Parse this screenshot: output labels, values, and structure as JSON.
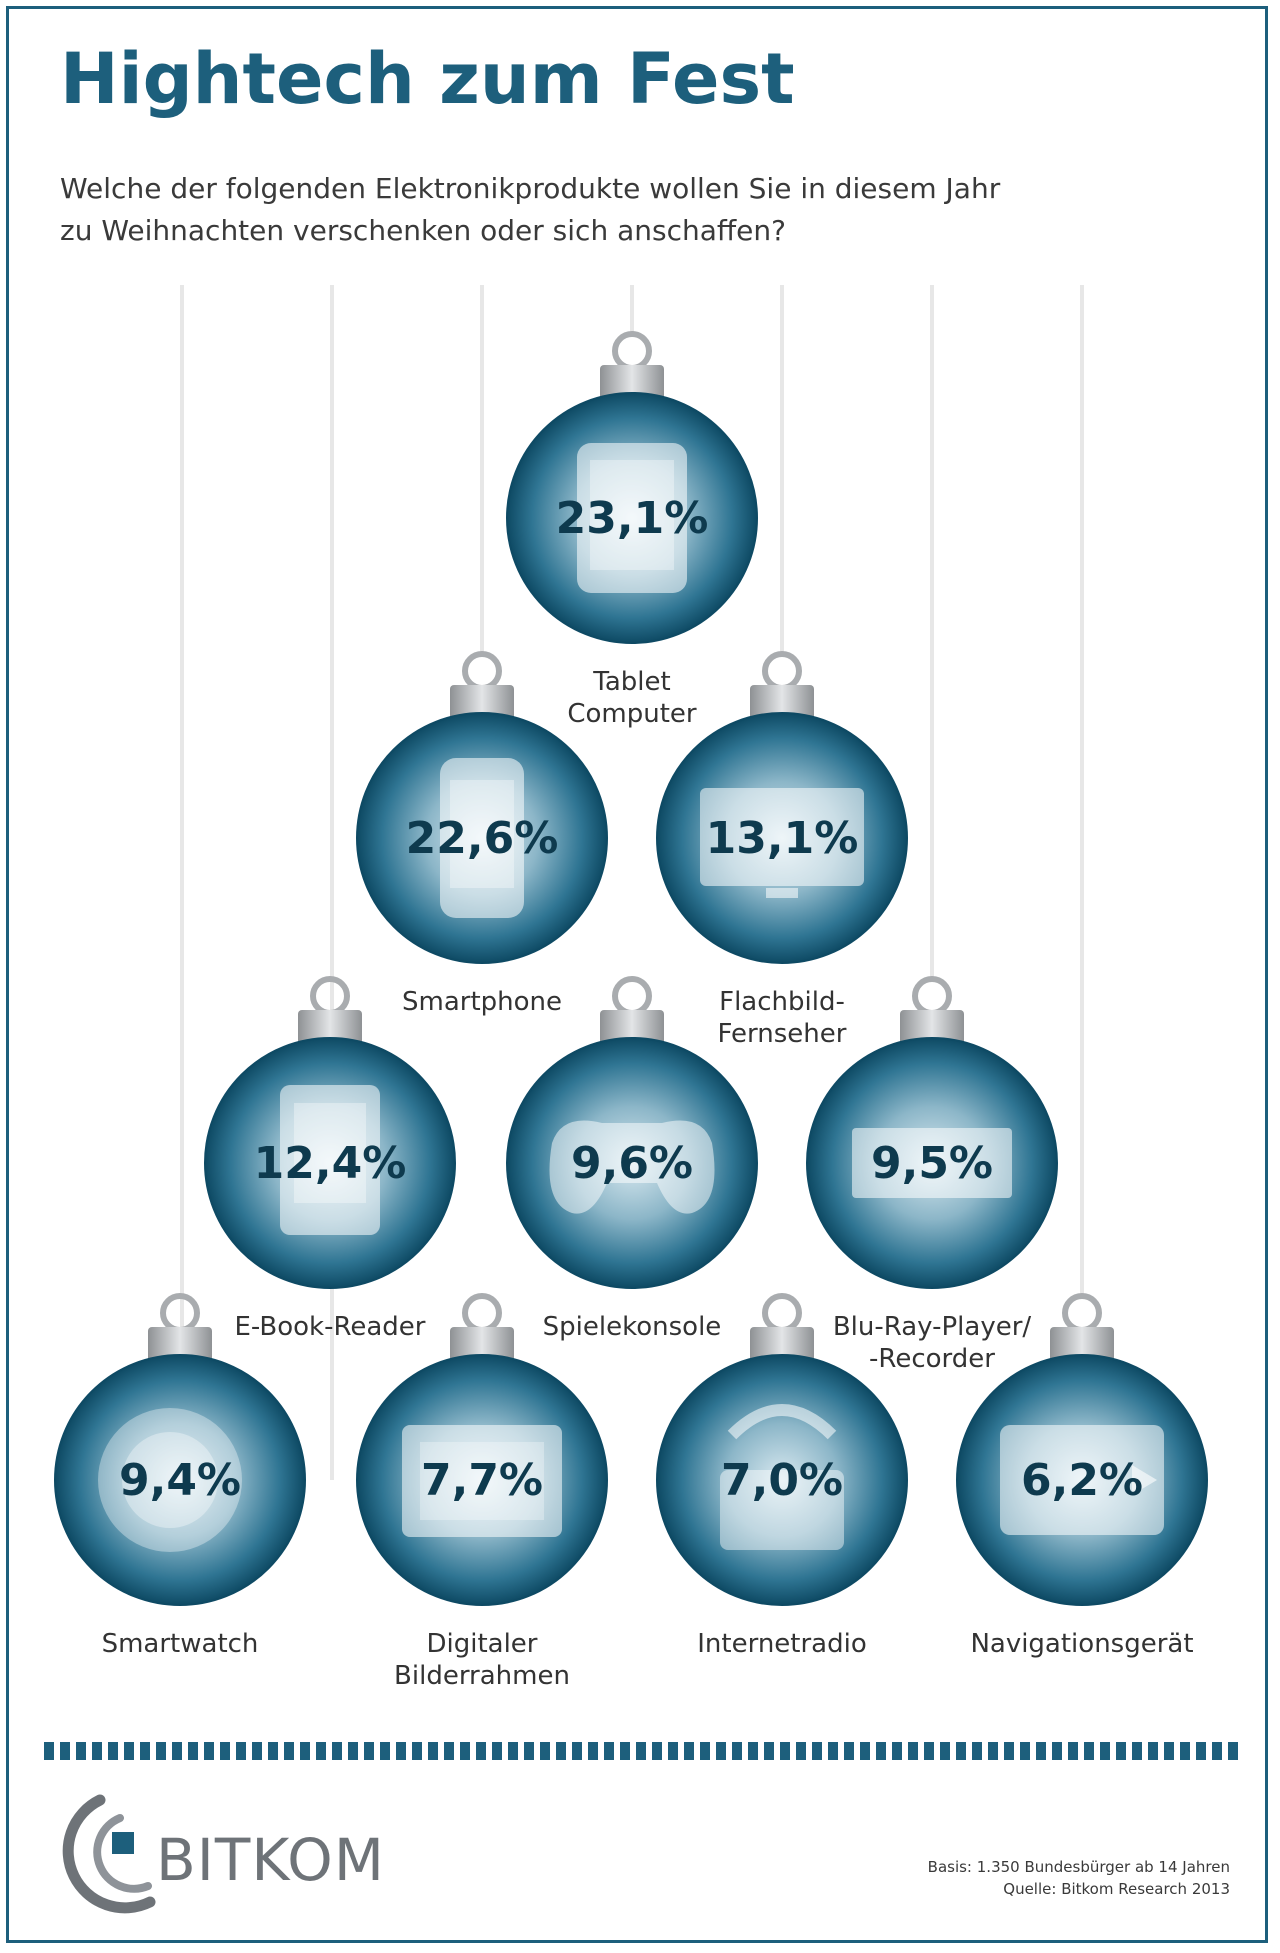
{
  "title": "Hightech zum Fest",
  "subtitle": [
    "Welche der folgenden Elektronikprodukte wollen Sie in diesem Jahr",
    "zu Weihnachten verschenken oder sich anschaffen?"
  ],
  "colors": {
    "brand_blue": "#1d5f7c",
    "ornament_dark": "#0e4a64",
    "ornament_light": "#d9e9f0",
    "cap_silver": "#c7c9cb",
    "string": "#e7e7e7"
  },
  "chart_data": {
    "type": "bar",
    "unit": "%",
    "categories": [
      "Tablet Computer",
      "Smartphone",
      "Flachbild-Fernseher",
      "E-Book-Reader",
      "Spielekonsole",
      "Blu-Ray-Player/-Recorder",
      "Smartwatch",
      "Digitaler Bilderrahmen",
      "Internetradio",
      "Navigationsgerät"
    ],
    "values": [
      23.1,
      22.6,
      13.1,
      12.4,
      9.6,
      9.5,
      9.4,
      7.7,
      7.0,
      6.2
    ],
    "value_labels": [
      "23,1%",
      "22,6%",
      "13,1%",
      "12,4%",
      "9,6%",
      "9,5%",
      "9,4%",
      "7,7%",
      "7,0%",
      "6,2%"
    ],
    "label_lines": [
      [
        "Tablet",
        "Computer"
      ],
      [
        "Smartphone"
      ],
      [
        "Flachbild-",
        "Fernseher"
      ],
      [
        "E-Book-Reader"
      ],
      [
        "Spielekonsole"
      ],
      [
        "Blu-Ray-Player/",
        "-Recorder"
      ],
      [
        "Smartwatch"
      ],
      [
        "Digitaler",
        "Bilderrahmen"
      ],
      [
        "Internetradio"
      ],
      [
        "Navigationsgerät"
      ]
    ],
    "icons": [
      "tablet-icon",
      "smartphone-icon",
      "tv-icon",
      "ebook-icon",
      "gamepad-icon",
      "bluray-icon",
      "smartwatch-icon",
      "picture-frame-icon",
      "radio-icon",
      "navigation-icon"
    ]
  },
  "footer": {
    "brand": "BITKOM",
    "basis": "Basis: 1.350 Bundesbürger ab 14 Jahren",
    "source": "Quelle: Bitkom Research 2013"
  }
}
